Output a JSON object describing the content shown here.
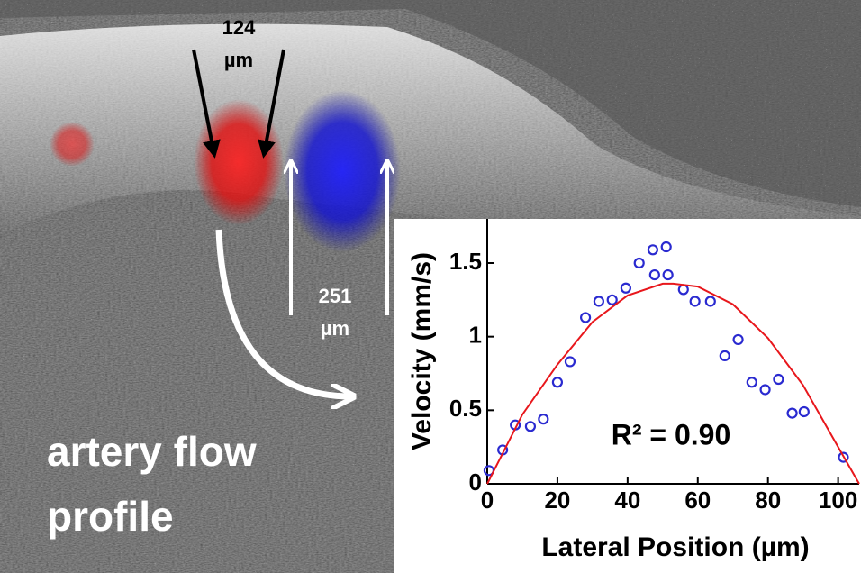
{
  "image": {
    "annotations": [
      {
        "lines": [
          "124",
          "µm"
        ]
      },
      {
        "lines": [
          "251",
          "µm"
        ]
      },
      {
        "lines": [
          "artery flow",
          "profile"
        ]
      }
    ]
  },
  "chart_data": {
    "type": "scatter",
    "xlabel": "Lateral Position (µm)",
    "ylabel": "Velocity (mm/s)",
    "annotation": "R² = 0.90",
    "xlim": [
      0,
      106
    ],
    "ylim": [
      0,
      1.8
    ],
    "xticks": [
      0,
      20,
      40,
      60,
      80,
      100
    ],
    "yticks": [
      0,
      0.5,
      1,
      1.5
    ],
    "series": [
      {
        "color": "#2a2ad0",
        "x": [
          0.5,
          4.4,
          8,
          12.3,
          16,
          20,
          23.6,
          28,
          31.8,
          35.6,
          39.5,
          43.3,
          47.2,
          51,
          47.7,
          51.5,
          55.9,
          59.2,
          63.6,
          67.7,
          71.5,
          75.4,
          79.2,
          83,
          86.9,
          90.3,
          101.5
        ],
        "values": [
          0.09,
          0.23,
          0.4,
          0.39,
          0.44,
          0.69,
          0.83,
          1.13,
          1.24,
          1.25,
          1.33,
          1.5,
          1.59,
          1.61,
          1.42,
          1.42,
          1.32,
          1.24,
          1.24,
          0.87,
          0.98,
          0.69,
          0.64,
          0.71,
          0.48,
          0.49,
          0.18
        ]
      },
      {
        "type": "line",
        "color": "#e8171c",
        "x": [
          0,
          10,
          20,
          30,
          40,
          50,
          53,
          60,
          70,
          80,
          90,
          100,
          106
        ],
        "values": [
          0,
          0.47,
          0.81,
          1.1,
          1.28,
          1.36,
          1.36,
          1.34,
          1.22,
          0.99,
          0.67,
          0.25,
          0
        ]
      }
    ]
  }
}
